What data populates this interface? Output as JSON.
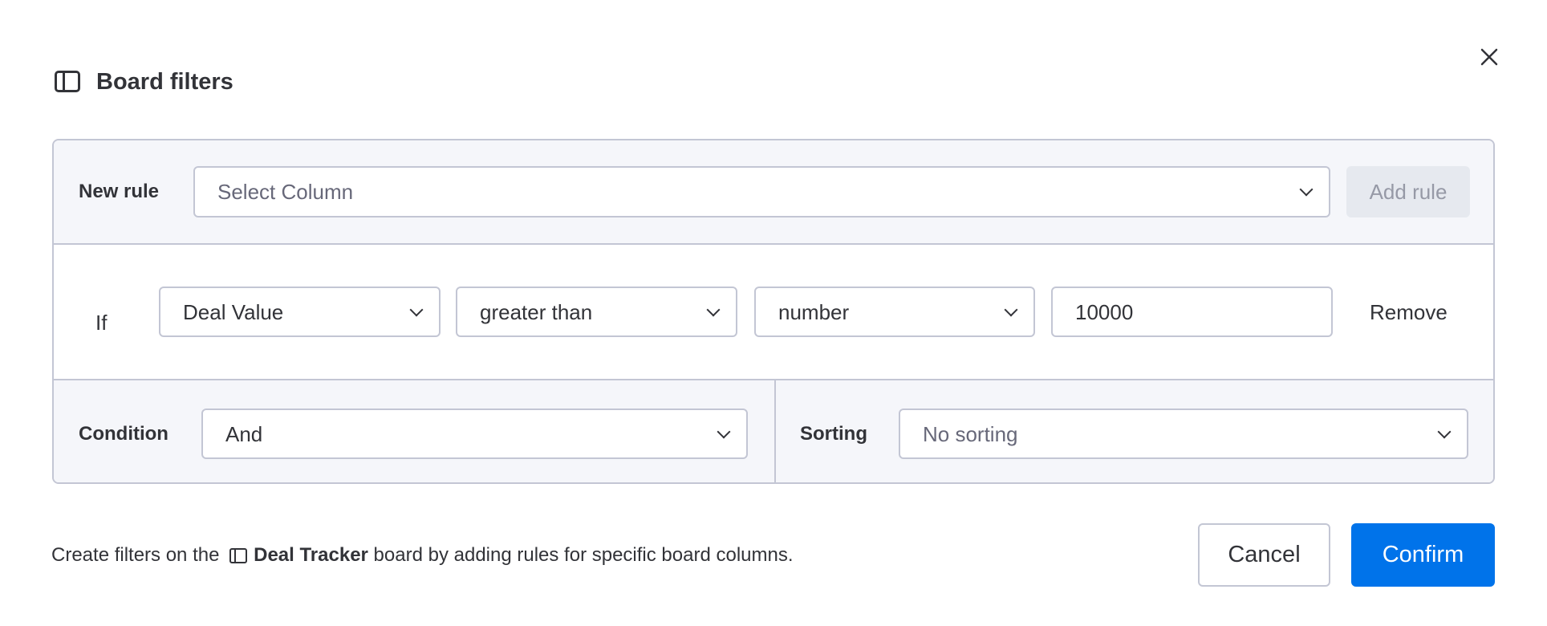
{
  "dialog": {
    "title": "Board filters",
    "title_icon": "board-icon",
    "close_icon": "close-icon"
  },
  "new_rule": {
    "label": "New rule",
    "column_placeholder": "Select Column",
    "add_rule_label": "Add rule"
  },
  "rule": {
    "prefix": "If",
    "column": "Deal Value",
    "operator": "greater than",
    "value_type": "number",
    "value": "10000",
    "remove_label": "Remove"
  },
  "condition": {
    "label": "Condition",
    "value": "And"
  },
  "sorting": {
    "label": "Sorting",
    "value": "No sorting"
  },
  "footer": {
    "text_before": "Create filters on the ",
    "board_name": "Deal Tracker",
    "text_after": " board by adding rules for specific board columns.",
    "cancel_label": "Cancel",
    "confirm_label": "Confirm"
  },
  "colors": {
    "accent": "#0073ea",
    "border": "#c3c6d4",
    "panel_bg": "#f5f6fa",
    "text": "#323338"
  }
}
